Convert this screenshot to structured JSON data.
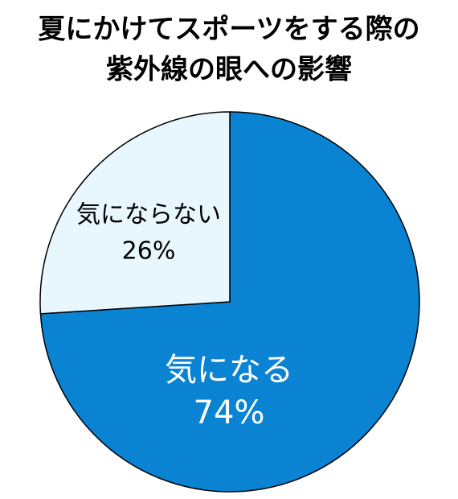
{
  "chart_data": {
    "type": "pie",
    "title": [
      "夏にかけてスポーツをする際の",
      "紫外線の眼への影響"
    ],
    "categories": [
      "気になる",
      "気にならない"
    ],
    "values": [
      74,
      26
    ],
    "value_labels": [
      "74%",
      "26%"
    ],
    "colors": [
      "#0b83d3",
      "#e8f6fd"
    ],
    "label_colors": [
      "#ffffff",
      "#000000"
    ]
  }
}
